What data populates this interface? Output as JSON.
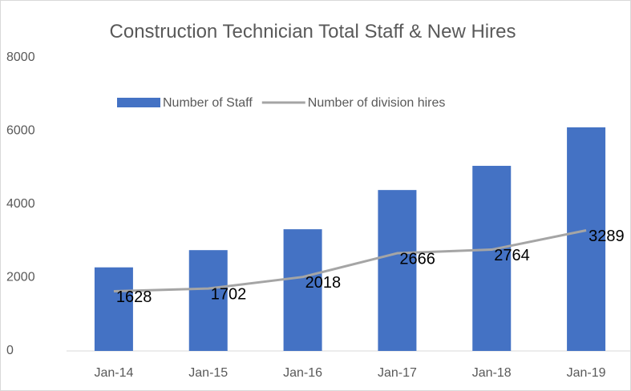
{
  "chart_data": {
    "type": "bar_line",
    "title": "Construction Technician Total Staff & New Hires",
    "categories": [
      "Jan-14",
      "Jan-15",
      "Jan-16",
      "Jan-17",
      "Jan-18",
      "Jan-19"
    ],
    "series": [
      {
        "name": "Number of Staff",
        "type": "bar",
        "color": "#4472c4",
        "values": [
          2280,
          2750,
          3320,
          4390,
          5050,
          6100
        ]
      },
      {
        "name": "Number of division hires",
        "type": "line",
        "color": "#a5a5a5",
        "values": [
          1628,
          1702,
          2018,
          2666,
          2764,
          3289
        ]
      }
    ],
    "ylim": [
      0,
      8000
    ],
    "yticks": [
      0,
      2000,
      4000,
      6000,
      8000
    ],
    "grid": false,
    "legend": "top"
  }
}
